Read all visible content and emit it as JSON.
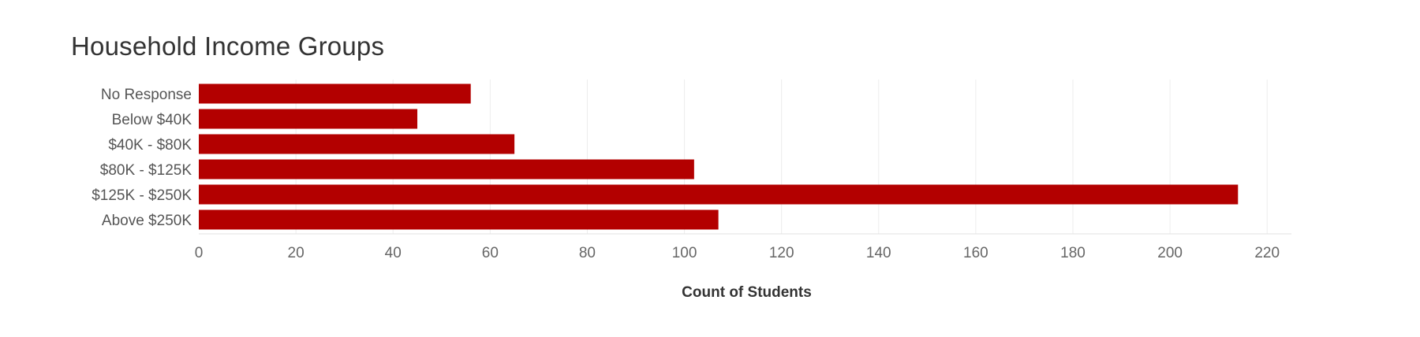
{
  "chart_data": {
    "type": "bar",
    "orientation": "horizontal",
    "title": "Household Income Groups",
    "xlabel": "Count of Students",
    "ylabel": "",
    "categories": [
      "No Response",
      "Below $40K",
      "$40K - $80K",
      "$80K - $125K",
      "$125K - $250K",
      "Above $250K"
    ],
    "values": [
      56,
      45,
      65,
      102,
      214,
      107
    ],
    "xlim": [
      0,
      225
    ],
    "xticks": [
      "0",
      "20",
      "40",
      "60",
      "80",
      "100",
      "120",
      "140",
      "160",
      "180",
      "200",
      "220"
    ],
    "grid": "vertical",
    "legend": "none",
    "bar_color": "#b30000"
  }
}
